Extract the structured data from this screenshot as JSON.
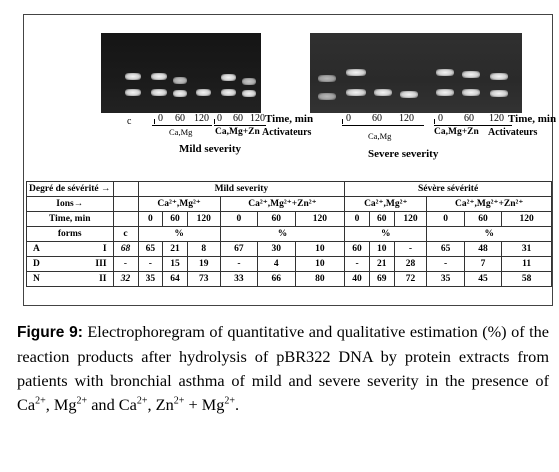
{
  "gel": {
    "lane_c_label": "c",
    "mild": {
      "ticks": [
        "0",
        "60",
        "120"
      ],
      "ticks2": [
        "0",
        "60",
        "120"
      ],
      "axis_label": "Time, min",
      "group1": "Ca,Mg",
      "group2": "Ca,Mg+Zn",
      "activators": "Activateurs",
      "severity": "Mild severity"
    },
    "severe": {
      "ticks": [
        "0",
        "60",
        "120"
      ],
      "ticks2": [
        "0",
        "60",
        "120"
      ],
      "axis_label": "Time, min",
      "group1": "Ca,Mg",
      "group2": "Ca,Mg+Zn",
      "activators": "Activateurs",
      "severity": "Severe severity"
    }
  },
  "table": {
    "degree_label": "Degré de sévérité →",
    "ions_label": "Ions→",
    "time_label": "Time, min",
    "forms_label": "forms",
    "c_label": "c",
    "mild_header": "Mild severity",
    "severe_header": "Sévère sévérité",
    "ion_groups": [
      "Ca²⁺,Mg²⁺",
      "Ca²⁺,Mg²⁺+Zn²⁺",
      "Ca²⁺,Mg²⁺",
      "Ca²⁺,Mg²⁺+Zn²⁺"
    ],
    "times": [
      "0",
      "60",
      "120",
      "0",
      "60",
      "120",
      "0",
      "60",
      "120",
      "0",
      "60",
      "120"
    ],
    "percent": "%",
    "rows": [
      {
        "letter": "A",
        "form": "I",
        "c": "68",
        "values": [
          "65",
          "21",
          "8",
          "67",
          "30",
          "10",
          "60",
          "10",
          "-",
          "65",
          "48",
          "31"
        ]
      },
      {
        "letter": "D",
        "form": "III",
        "c": "-",
        "values": [
          "-",
          "15",
          "19",
          "-",
          "4",
          "10",
          "-",
          "21",
          "28",
          "-",
          "7",
          "11"
        ]
      },
      {
        "letter": "N",
        "form": "II",
        "c": "32",
        "values": [
          "35",
          "64",
          "73",
          "33",
          "66",
          "80",
          "40",
          "69",
          "72",
          "35",
          "45",
          "58"
        ]
      }
    ]
  },
  "caption": {
    "label": "Figure 9:",
    "text_1": " Electrophoregram of quantitative and qualitative estimation (%) of the reaction products after hydrolysis of pBR322 DNA by protein extracts from patients with bronchial asthma of mild and severe severity in the presence of Ca",
    "sup_1": "2+",
    "text_2": ", Mg",
    "sup_2": "2+",
    "text_3": " and Ca",
    "sup_3": "2+",
    "text_4": ", Zn",
    "sup_4": "2+",
    "text_5": " + Mg",
    "sup_5": "2+",
    "text_6": "."
  }
}
